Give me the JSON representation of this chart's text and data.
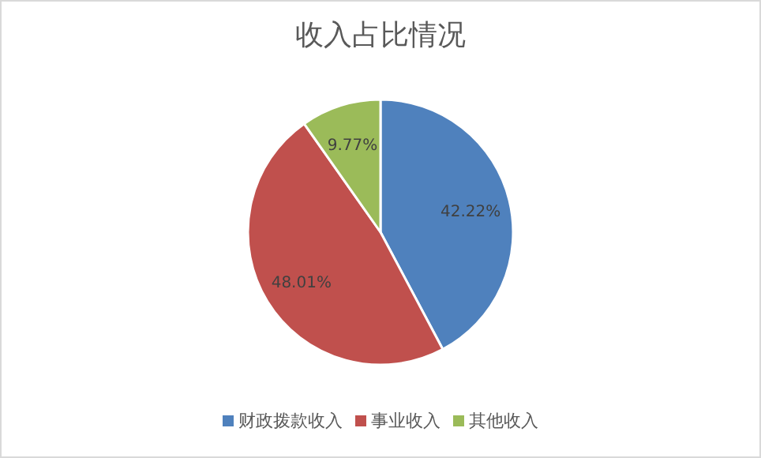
{
  "chart_data": {
    "type": "pie",
    "title": "收入占比情况",
    "categories": [
      "财政拨款收入",
      "事业收入",
      "其他收入"
    ],
    "values": [
      42.22,
      48.01,
      9.77
    ],
    "colors": [
      "#4f81bd",
      "#c0504d",
      "#9bbb59"
    ],
    "value_labels": [
      "42.22%",
      "48.01%",
      "9.77%"
    ],
    "legend": "bottom"
  }
}
